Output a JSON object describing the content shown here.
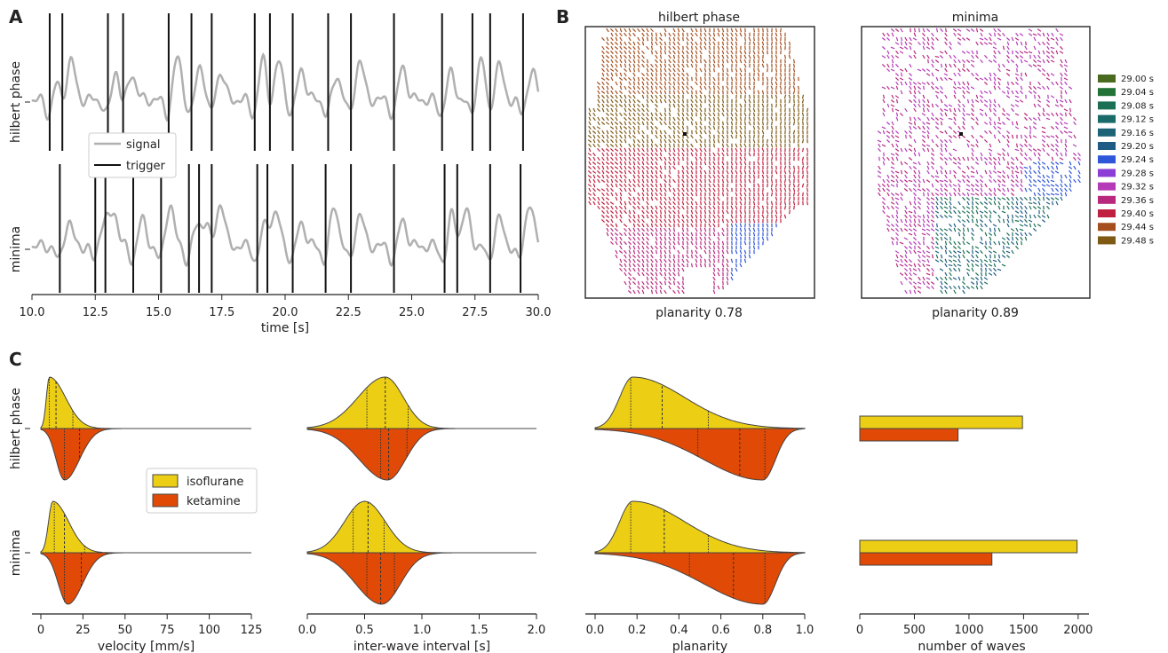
{
  "panels": {
    "a": "A",
    "b": "B",
    "c": "C"
  },
  "colors": {
    "signal": "#b0b0b0",
    "trigger": "#111111",
    "isoflurane": "#eccf15",
    "ketamine": "#e04a06",
    "outline": "#444444"
  },
  "chart_data": [
    {
      "id": "A",
      "type": "line",
      "xlabel": "time [s]",
      "xlim": [
        10,
        30
      ],
      "xticks": [
        "10.0",
        "12.5",
        "15.0",
        "17.5",
        "20.0",
        "22.5",
        "25.0",
        "27.5",
        "30.0"
      ],
      "rows": [
        "hilbert phase",
        "minima"
      ],
      "legend": {
        "placement": "center-left",
        "entries": [
          "signal",
          "trigger"
        ]
      },
      "series": [
        {
          "name": "signal"
        },
        {
          "name": "trigger",
          "triggers": {
            "hilbert phase": [
              10.7,
              11.2,
              13.0,
              13.6,
              15.4,
              16.3,
              17.1,
              18.8,
              19.4,
              20.3,
              21.7,
              22.6,
              24.3,
              26.2,
              27.4,
              28.1,
              29.4
            ],
            "minima": [
              11.1,
              12.5,
              12.9,
              14.0,
              15.1,
              16.2,
              16.6,
              17.1,
              18.9,
              19.3,
              20.3,
              21.6,
              22.6,
              24.3,
              26.3,
              26.8,
              28.1,
              29.3
            ]
          }
        }
      ]
    },
    {
      "id": "B",
      "type": "heatmap",
      "maps": [
        {
          "title": "hilbert phase",
          "caption": "planarity 0.78"
        },
        {
          "title": "minima",
          "caption": "planarity 0.89"
        }
      ],
      "legend": {
        "placement": "right",
        "entries": [
          {
            "label": "29.00 s",
            "color": "#4a6a1f"
          },
          {
            "label": "29.04 s",
            "color": "#237238"
          },
          {
            "label": "29.08 s",
            "color": "#1a6f55"
          },
          {
            "label": "29.12 s",
            "color": "#1b6a6a"
          },
          {
            "label": "29.16 s",
            "color": "#1c6378"
          },
          {
            "label": "29.20 s",
            "color": "#1e5c86"
          },
          {
            "label": "29.24 s",
            "color": "#2f56d8"
          },
          {
            "label": "29.28 s",
            "color": "#8b3dd6"
          },
          {
            "label": "29.32 s",
            "color": "#b43ab8"
          },
          {
            "label": "29.36 s",
            "color": "#b8297e"
          },
          {
            "label": "29.40 s",
            "color": "#c0203f"
          },
          {
            "label": "29.44 s",
            "color": "#a54f1e"
          },
          {
            "label": "29.48 s",
            "color": "#7e5a15"
          }
        ]
      }
    },
    {
      "id": "C",
      "type": "area",
      "rows": [
        "hilbert phase",
        "minima"
      ],
      "legend": {
        "placement": "center-left",
        "entries": [
          "isoflurane",
          "ketamine"
        ]
      },
      "columns": [
        {
          "xlabel": "velocity [mm/s]",
          "xlim": [
            0,
            125
          ],
          "xticks": [
            "0",
            "25",
            "50",
            "75",
            "100",
            "125"
          ],
          "data": {
            "hilbert phase": {
              "isoflurane": {
                "mode": 5,
                "quartiles": [
                  5,
                  9,
                  19
                ]
              },
              "ketamine": {
                "mode": 14,
                "quartiles": [
                  14,
                  23,
                  40
                ]
              }
            },
            "minima": {
              "isoflurane": {
                "mode": 7,
                "quartiles": [
                  8,
                  14,
                  26
                ]
              },
              "ketamine": {
                "mode": 16,
                "quartiles": [
                  14,
                  24,
                  39
                ]
              }
            }
          }
        },
        {
          "xlabel": "inter-wave interval [s]",
          "xlim": [
            0,
            2
          ],
          "xticks": [
            "0.0",
            "0.5",
            "1.0",
            "1.5",
            "2.0"
          ],
          "data": {
            "hilbert phase": {
              "isoflurane": {
                "mode": 0.68,
                "quartiles": [
                  0.52,
                  0.68,
                  0.88
                ]
              },
              "ketamine": {
                "mode": 0.7,
                "quartiles": [
                  0.64,
                  0.71,
                  0.87
                ]
              }
            },
            "minima": {
              "isoflurane": {
                "mode": 0.5,
                "quartiles": [
                  0.4,
                  0.53,
                  0.67
                ]
              },
              "ketamine": {
                "mode": 0.65,
                "quartiles": [
                  0.52,
                  0.64,
                  0.76
                ]
              }
            }
          }
        },
        {
          "xlabel": "planarity",
          "xlim": [
            0,
            1
          ],
          "xticks": [
            "0.0",
            "0.2",
            "0.4",
            "0.6",
            "0.8",
            "1.0"
          ],
          "data": {
            "hilbert phase": {
              "isoflurane": {
                "mode": 0.18,
                "quartiles": [
                  0.17,
                  0.32,
                  0.54
                ]
              },
              "ketamine": {
                "mode": 0.8,
                "quartiles": [
                  0.49,
                  0.69,
                  0.81
                ]
              }
            },
            "minima": {
              "isoflurane": {
                "mode": 0.18,
                "quartiles": [
                  0.17,
                  0.33,
                  0.54
                ]
              },
              "ketamine": {
                "mode": 0.8,
                "quartiles": [
                  0.45,
                  0.66,
                  0.81
                ]
              }
            }
          }
        },
        {
          "type": "bar",
          "xlabel": "number of waves",
          "xlim": [
            0,
            2050
          ],
          "xticks": [
            "0",
            "500",
            "1000",
            "1500",
            "2000"
          ],
          "data": {
            "hilbert phase": {
              "isoflurane": 1490,
              "ketamine": 900
            },
            "minima": {
              "isoflurane": 1990,
              "ketamine": 1210
            }
          }
        }
      ]
    }
  ]
}
